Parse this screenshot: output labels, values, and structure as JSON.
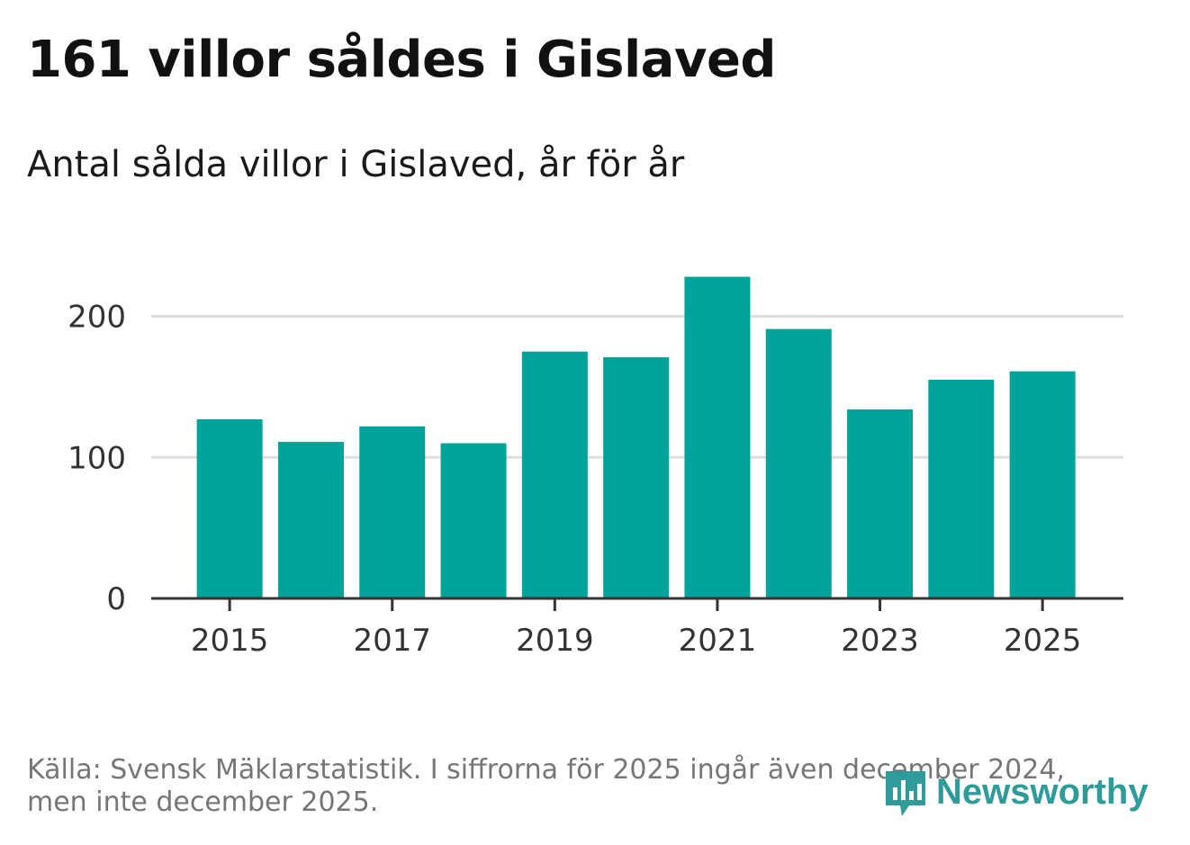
{
  "header": {
    "title": "161 villor såldes i Gislaved",
    "subtitle": "Antal sålda villor i Gislaved, år för år"
  },
  "chart_data": {
    "type": "bar",
    "title": "161 villor såldes i Gislaved",
    "subtitle": "Antal sålda villor i Gislaved, år för år",
    "xlabel": "",
    "ylabel": "",
    "categories": [
      "2015",
      "2016",
      "2017",
      "2018",
      "2019",
      "2020",
      "2021",
      "2022",
      "2023",
      "2024",
      "2025"
    ],
    "x_tick_labels": [
      "2015",
      "2017",
      "2019",
      "2021",
      "2023",
      "2025"
    ],
    "values": [
      127,
      111,
      122,
      110,
      175,
      171,
      228,
      191,
      134,
      155,
      161
    ],
    "ylim": [
      0,
      240
    ],
    "y_ticks": [
      0,
      100,
      200
    ],
    "grid": true,
    "bar_color": "#00a39a"
  },
  "footer": {
    "source": "Källa: Svensk Mäklarstatistik. I siffrorna för 2025 ingår även december 2024, men inte december 2025.",
    "logo_text": "Newsworthy",
    "logo_color": "#2f9c9a"
  }
}
